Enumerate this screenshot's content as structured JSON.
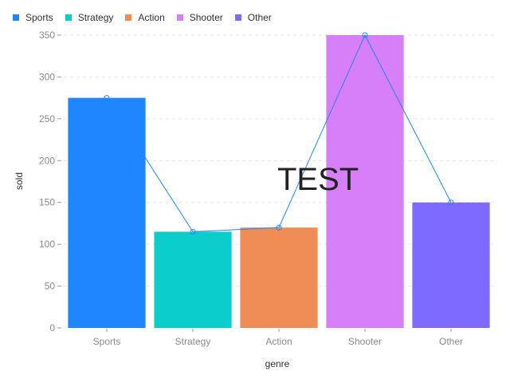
{
  "chart_data": {
    "type": "bar",
    "categories": [
      "Sports",
      "Strategy",
      "Action",
      "Shooter",
      "Other"
    ],
    "values": [
      275,
      115,
      120,
      350,
      150
    ],
    "line_values": [
      275,
      115,
      120,
      350,
      150
    ],
    "colors": [
      "#1f86ff",
      "#0bcdc9",
      "#f08c55",
      "#d67ff8",
      "#7f6aff"
    ],
    "line_color": "#1f86ff",
    "xlabel": "genre",
    "ylabel": "sold",
    "ylim": [
      0,
      350
    ],
    "yticks": [
      0,
      50,
      100,
      150,
      200,
      250,
      300,
      350
    ],
    "grid": "horizontal dashed",
    "legend_position": "top-left",
    "legend": [
      "Sports",
      "Strategy",
      "Action",
      "Shooter",
      "Other"
    ],
    "annotation": "TEST"
  }
}
